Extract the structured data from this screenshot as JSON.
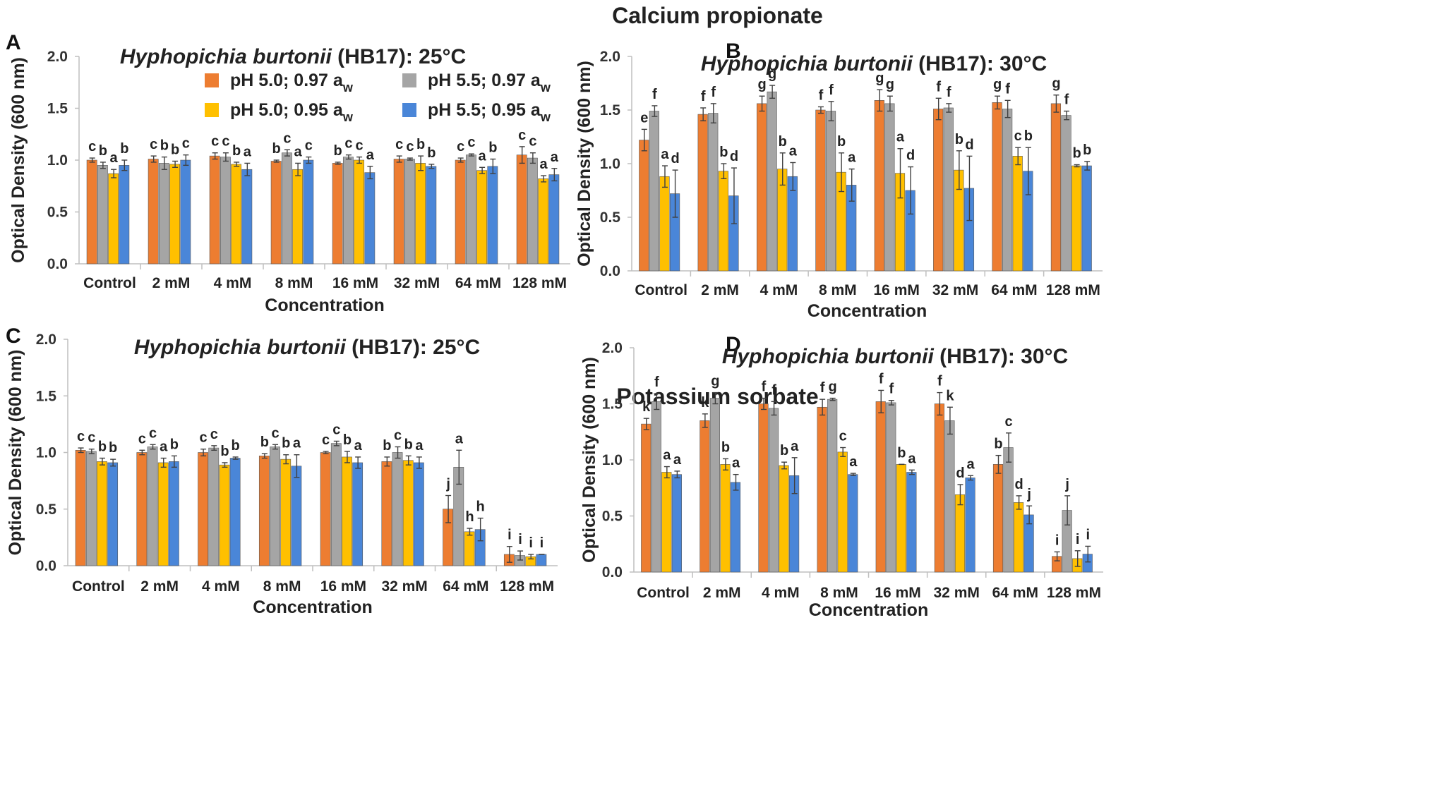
{
  "figure": {
    "section_top": "Calcium propionate",
    "section_bottom": "Potassium sorbate"
  },
  "colors": {
    "pH5.0_0.97": "#ED7D31",
    "pH5.5_0.97": "#A5A5A5",
    "pH5.0_0.95": "#FFC000",
    "pH5.5_0.95": "#4A86D8"
  },
  "chart_data": [
    {
      "panel": "A",
      "type": "bar",
      "title_italic": "Hyphopichia burtonii",
      "title_rest": " (HB17): 25°C",
      "xlabel": "Concentration",
      "ylabel": "Optical Density (600 nm)",
      "ylim": [
        0,
        2.0
      ],
      "yticks": [
        "0.0",
        "0.5",
        "1.0",
        "1.5",
        "2.0"
      ],
      "categories": [
        "Control",
        "2 mM",
        "4 mM",
        "8 mM",
        "16 mM",
        "32 mM",
        "64 mM",
        "128 mM"
      ],
      "legend": {
        "entries": [
          {
            "main": "pH 5.0; 0.97 a",
            "sub": "w"
          },
          {
            "main": "pH 5.5; 0.97 a",
            "sub": "w"
          },
          {
            "main": "pH 5.0; 0.95 a",
            "sub": "w"
          },
          {
            "main": "pH 5.5; 0.95 a",
            "sub": "w"
          }
        ]
      },
      "series": [
        {
          "name": "pH 5.0; 0.97 aw",
          "values": [
            1.0,
            1.01,
            1.04,
            0.99,
            0.97,
            1.01,
            1.0,
            1.05
          ],
          "errors": [
            0.02,
            0.03,
            0.03,
            0.01,
            0.01,
            0.03,
            0.02,
            0.08
          ],
          "letters": [
            "c",
            "c",
            "c",
            "b",
            "b",
            "c",
            "c",
            "c"
          ]
        },
        {
          "name": "pH 5.5; 0.97 aw",
          "values": [
            0.95,
            0.97,
            1.03,
            1.07,
            1.03,
            1.01,
            1.05,
            1.02
          ],
          "errors": [
            0.03,
            0.06,
            0.04,
            0.03,
            0.02,
            0.01,
            0.01,
            0.05
          ],
          "letters": [
            "b",
            "b",
            "c",
            "c",
            "c",
            "c",
            "c",
            "c"
          ]
        },
        {
          "name": "pH 5.0; 0.95 aw",
          "values": [
            0.87,
            0.96,
            0.96,
            0.91,
            1.0,
            0.97,
            0.9,
            0.82
          ],
          "errors": [
            0.04,
            0.03,
            0.02,
            0.06,
            0.03,
            0.07,
            0.03,
            0.03
          ],
          "letters": [
            "a",
            "b",
            "b",
            "a",
            "c",
            "b",
            "a",
            "a"
          ]
        },
        {
          "name": "pH 5.5; 0.95 aw",
          "values": [
            0.95,
            1.0,
            0.91,
            1.0,
            0.88,
            0.94,
            0.94,
            0.86
          ],
          "errors": [
            0.05,
            0.05,
            0.06,
            0.03,
            0.06,
            0.02,
            0.07,
            0.06
          ],
          "letters": [
            "b",
            "c",
            "a",
            "c",
            "a",
            "b",
            "b",
            "a"
          ]
        }
      ]
    },
    {
      "panel": "B",
      "type": "bar",
      "title_italic": "Hyphopichia burtonii",
      "title_rest": " (HB17): 30°C",
      "xlabel": "Concentration",
      "ylabel": "Optical Density (600 nm)",
      "ylim": [
        0,
        2.0
      ],
      "yticks": [
        "0.0",
        "0.5",
        "1.0",
        "1.5",
        "2.0"
      ],
      "categories": [
        "Control",
        "2 mM",
        "4 mM",
        "8 mM",
        "16 mM",
        "32 mM",
        "64 mM",
        "128 mM"
      ],
      "series": [
        {
          "name": "pH 5.0; 0.97 aw",
          "values": [
            1.22,
            1.46,
            1.56,
            1.5,
            1.59,
            1.51,
            1.57,
            1.56
          ],
          "errors": [
            0.1,
            0.06,
            0.07,
            0.03,
            0.1,
            0.1,
            0.06,
            0.08
          ],
          "letters": [
            "e",
            "f",
            "g",
            "f",
            "g",
            "f",
            "g",
            "g"
          ]
        },
        {
          "name": "pH 5.5; 0.97 aw",
          "values": [
            1.49,
            1.47,
            1.67,
            1.49,
            1.56,
            1.52,
            1.51,
            1.45
          ],
          "errors": [
            0.05,
            0.09,
            0.06,
            0.09,
            0.07,
            0.04,
            0.08,
            0.04
          ],
          "letters": [
            "f",
            "f",
            "g",
            "f",
            "g",
            "f",
            "f",
            "f"
          ]
        },
        {
          "name": "pH 5.0; 0.95 aw",
          "values": [
            0.88,
            0.93,
            0.95,
            0.92,
            0.91,
            0.94,
            1.07,
            0.98
          ],
          "errors": [
            0.1,
            0.07,
            0.15,
            0.18,
            0.23,
            0.18,
            0.08,
            0.01
          ],
          "letters": [
            "a",
            "b",
            "b",
            "b",
            "a",
            "b",
            "c",
            "b"
          ]
        },
        {
          "name": "pH 5.5; 0.95 aw",
          "values": [
            0.72,
            0.7,
            0.88,
            0.8,
            0.75,
            0.77,
            0.93,
            0.98
          ],
          "errors": [
            0.22,
            0.26,
            0.13,
            0.15,
            0.22,
            0.3,
            0.22,
            0.04
          ],
          "letters": [
            "d",
            "d",
            "a",
            "a",
            "d",
            "d",
            "b",
            "b"
          ]
        }
      ]
    },
    {
      "panel": "C",
      "type": "bar",
      "title_italic": "Hyphopichia burtonii",
      "title_rest": " (HB17): 25°C",
      "xlabel": "Concentration",
      "ylabel": "Optical Density (600 nm)",
      "ylim": [
        0,
        2.0
      ],
      "yticks": [
        "0.0",
        "0.5",
        "1.0",
        "1.5",
        "2.0"
      ],
      "categories": [
        "Control",
        "2 mM",
        "4 mM",
        "8 mM",
        "16 mM",
        "32 mM",
        "64 mM",
        "128 mM"
      ],
      "series": [
        {
          "name": "pH 5.0; 0.97 aw",
          "values": [
            1.02,
            1.0,
            1.0,
            0.97,
            1.0,
            0.92,
            0.5,
            0.1
          ],
          "errors": [
            0.02,
            0.02,
            0.03,
            0.02,
            0.01,
            0.04,
            0.12,
            0.07
          ],
          "letters": [
            "c",
            "c",
            "c",
            "b",
            "c",
            "b",
            "j",
            "i"
          ]
        },
        {
          "name": "pH 5.5; 0.97 aw",
          "values": [
            1.01,
            1.05,
            1.04,
            1.05,
            1.08,
            1.0,
            0.87,
            0.09
          ],
          "errors": [
            0.02,
            0.02,
            0.02,
            0.02,
            0.02,
            0.05,
            0.15,
            0.04
          ],
          "letters": [
            "c",
            "c",
            "c",
            "c",
            "c",
            "c",
            "a",
            "i"
          ]
        },
        {
          "name": "pH 5.0; 0.95 aw",
          "values": [
            0.92,
            0.91,
            0.89,
            0.94,
            0.96,
            0.93,
            0.3,
            0.08
          ],
          "errors": [
            0.03,
            0.04,
            0.02,
            0.04,
            0.05,
            0.04,
            0.03,
            0.02
          ],
          "letters": [
            "b",
            "a",
            "b",
            "b",
            "b",
            "b",
            "h",
            "i"
          ]
        },
        {
          "name": "pH 5.5; 0.95 aw",
          "values": [
            0.91,
            0.92,
            0.95,
            0.88,
            0.91,
            0.91,
            0.32,
            0.1
          ],
          "errors": [
            0.03,
            0.05,
            0.01,
            0.1,
            0.05,
            0.05,
            0.1,
            0.0
          ],
          "letters": [
            "b",
            "b",
            "b",
            "a",
            "a",
            "a",
            "h",
            "i"
          ]
        }
      ]
    },
    {
      "panel": "D",
      "type": "bar",
      "title_italic": "Hyphopichia burtonii",
      "title_rest": " (HB17): 30°C",
      "xlabel": "Concentration",
      "ylabel": "Optical Density (600 nm)",
      "ylim": [
        0,
        2.0
      ],
      "yticks": [
        "0.0",
        "0.5",
        "1.0",
        "1.5",
        "2.0"
      ],
      "categories": [
        "Control",
        "2 mM",
        "4 mM",
        "8 mM",
        "16 mM",
        "32 mM",
        "64 mM",
        "128 mM"
      ],
      "series": [
        {
          "name": "pH 5.0; 0.97 aw",
          "values": [
            1.32,
            1.35,
            1.5,
            1.47,
            1.52,
            1.5,
            0.96,
            0.14
          ],
          "errors": [
            0.05,
            0.06,
            0.05,
            0.07,
            0.1,
            0.1,
            0.08,
            0.04
          ],
          "letters": [
            "k",
            "k",
            "f",
            "f",
            "f",
            "f",
            "b",
            "i"
          ]
        },
        {
          "name": "pH 5.5; 0.97 aw",
          "values": [
            1.52,
            1.55,
            1.46,
            1.54,
            1.51,
            1.35,
            1.11,
            0.55
          ],
          "errors": [
            0.07,
            0.05,
            0.06,
            0.01,
            0.02,
            0.12,
            0.13,
            0.13
          ],
          "letters": [
            "f",
            "g",
            "f",
            "g",
            "f",
            "k",
            "c",
            "j"
          ]
        },
        {
          "name": "pH 5.0; 0.95 aw",
          "values": [
            0.89,
            0.96,
            0.95,
            1.07,
            0.96,
            0.69,
            0.62,
            0.12
          ],
          "errors": [
            0.05,
            0.05,
            0.03,
            0.04,
            0.0,
            0.09,
            0.06,
            0.07
          ],
          "letters": [
            "a",
            "b",
            "b",
            "c",
            "b",
            "d",
            "d",
            "i"
          ]
        },
        {
          "name": "pH 5.5; 0.95 aw",
          "values": [
            0.87,
            0.8,
            0.86,
            0.87,
            0.89,
            0.84,
            0.51,
            0.16
          ],
          "errors": [
            0.03,
            0.07,
            0.16,
            0.01,
            0.02,
            0.02,
            0.08,
            0.07
          ],
          "letters": [
            "a",
            "a",
            "a",
            "a",
            "a",
            "a",
            "j",
            "i"
          ]
        }
      ]
    }
  ]
}
